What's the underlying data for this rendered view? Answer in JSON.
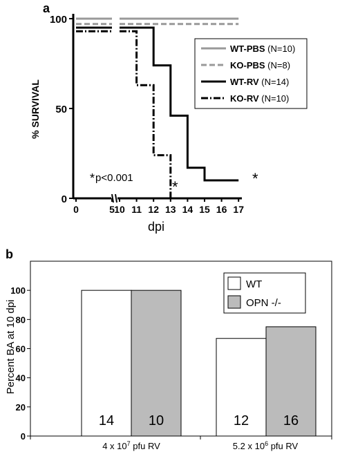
{
  "chart_data": [
    {
      "panel": "a",
      "type": "line",
      "xlabel": "dpi",
      "ylabel": "% SURVIVAL",
      "x_ticks_left": [
        "0",
        "5"
      ],
      "x_ticks_right": [
        "10",
        "11",
        "12",
        "13",
        "14",
        "15",
        "16",
        "17"
      ],
      "y_ticks": [
        "0",
        "50",
        "100"
      ],
      "ylim": [
        0,
        100
      ],
      "annotation": "p<0.001",
      "annotation_star": "*",
      "series": [
        {
          "name": "WT-PBS",
          "n_label": "(N=10)",
          "style": "solid",
          "color": "#999999",
          "points": [
            [
              0,
              100
            ],
            [
              17,
              100
            ]
          ]
        },
        {
          "name": "KO-PBS",
          "n_label": "(N=8)",
          "style": "dashed",
          "color": "#999999",
          "points": [
            [
              0,
              97
            ],
            [
              17,
              97
            ]
          ]
        },
        {
          "name": "WT-RV",
          "n_label": "(N=14)",
          "style": "solid",
          "color": "#000000",
          "points": [
            [
              0,
              95
            ],
            [
              12,
              95
            ],
            [
              12,
              74
            ],
            [
              13,
              74
            ],
            [
              13,
              46
            ],
            [
              14,
              46
            ],
            [
              14,
              17
            ],
            [
              15,
              17
            ],
            [
              15,
              10
            ],
            [
              17,
              10
            ]
          ]
        },
        {
          "name": "KO-RV",
          "n_label": "(N=10)",
          "style": "dashdot",
          "color": "#000000",
          "points": [
            [
              0,
              93
            ],
            [
              11,
              93
            ],
            [
              11,
              63
            ],
            [
              12,
              63
            ],
            [
              12,
              24
            ],
            [
              13,
              24
            ],
            [
              13,
              0
            ]
          ]
        }
      ],
      "significance_marks": [
        "*",
        "*"
      ]
    },
    {
      "panel": "b",
      "type": "bar",
      "ylabel": "Percent BA at 10 dpi",
      "y_ticks": [
        "0",
        "20",
        "40",
        "60",
        "80",
        "100"
      ],
      "ylim": [
        0,
        120
      ],
      "categories": [
        {
          "base": "4 x 10",
          "sup": "7",
          "rest": " pfu RV"
        },
        {
          "base": "5.2 x 10",
          "sup": "6",
          "rest": " pfu RV"
        }
      ],
      "series": [
        {
          "name": "WT",
          "color": "#ffffff",
          "values": [
            100,
            67
          ],
          "n_labels": [
            "14",
            "12"
          ]
        },
        {
          "name": "OPN -/-",
          "color": "#bbbbbb",
          "values": [
            100,
            75
          ],
          "n_labels": [
            "10",
            "16"
          ]
        }
      ]
    }
  ]
}
